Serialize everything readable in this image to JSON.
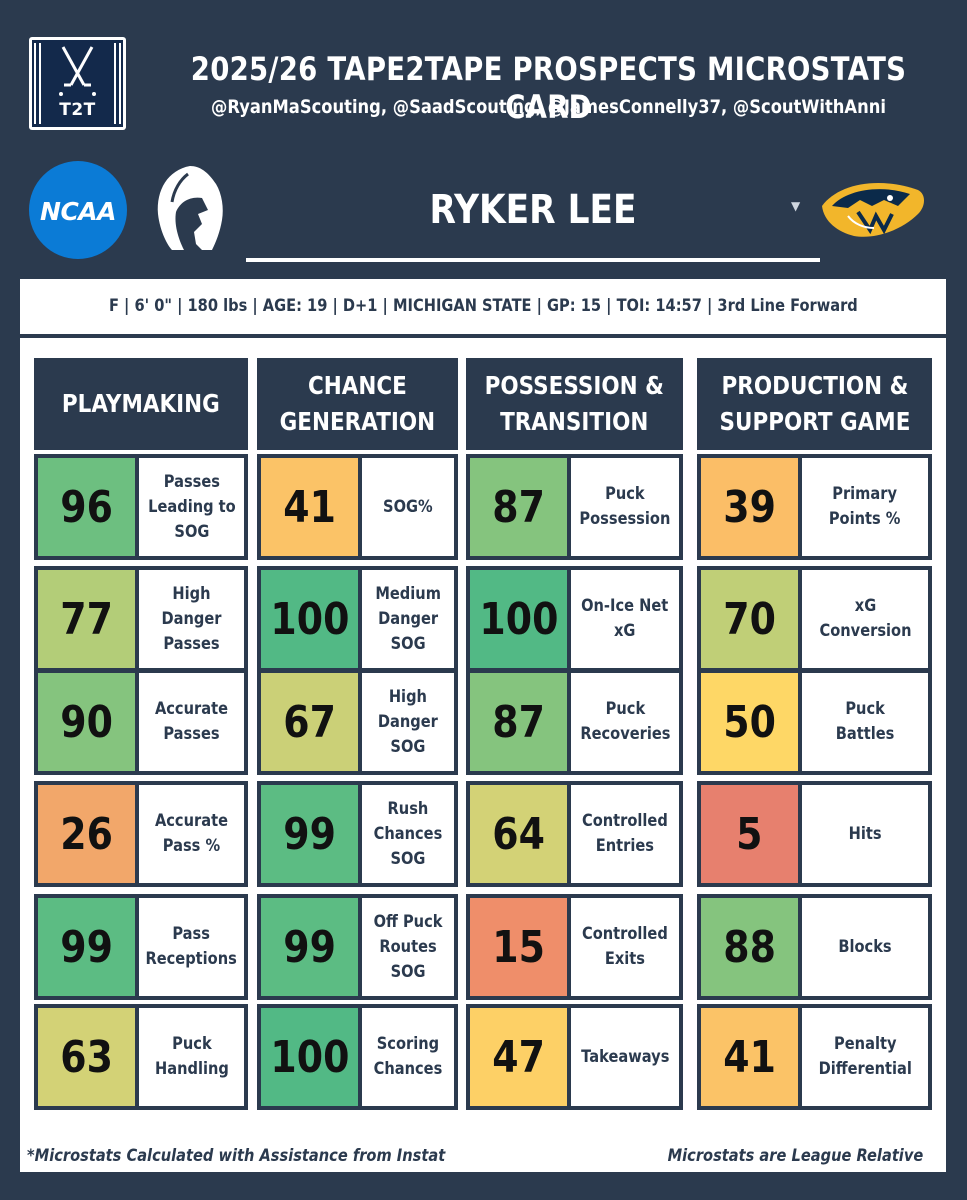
{
  "header": {
    "title": "2025/26 TAPE2TAPE PROSPECTS MICROSTATS CARD",
    "credits": "@RyanMaScouting, @SaadScouting, @JamesConnelly37, @ScoutWithAnni",
    "logo_text": "T2T"
  },
  "badges": {
    "league_logo_text": "NCAA"
  },
  "player": {
    "name": "RYKER LEE",
    "info_line": "F   |   6' 0\"   |   180 lbs   |   AGE: 19   |   D+1   |   MICHIGAN STATE   |   GP: 15   |   TOI: 14:57   |   3rd Line Forward"
  },
  "colors": {
    "background": "#2b3a4e",
    "scale": {
      "dark_green": "#52b985",
      "green": "#74c07e",
      "light_green": "#b7cf77",
      "yellow_green": "#d2d276",
      "yellow": "#fed766",
      "light_orange": "#fbc567",
      "orange": "#f2a76a",
      "dark_orange": "#ef8e6a",
      "red": "#e7806e"
    }
  },
  "categories": [
    {
      "title": "PLAYMAKING",
      "stats": [
        {
          "value": "96",
          "label": "Passes\nLeading to\nSOG",
          "color": "#6dbf80"
        },
        {
          "value": "77",
          "label": "High Danger\nPasses",
          "color": "#b3cd78"
        },
        {
          "value": "90",
          "label": "Accurate\nPasses",
          "color": "#85c47e"
        },
        {
          "value": "26",
          "label": "Accurate\nPass %",
          "color": "#f2a76a"
        },
        {
          "value": "99",
          "label": "Pass\nReceptions",
          "color": "#5cbc83"
        },
        {
          "value": "63",
          "label": "Puck\nHandling",
          "color": "#d3d276"
        }
      ]
    },
    {
      "title": "CHANCE\nGENERATION",
      "stats": [
        {
          "value": "41",
          "label": "SOG%",
          "color": "#fbc367"
        },
        {
          "value": "100",
          "label": "Medium\nDanger\nSOG",
          "color": "#52b985"
        },
        {
          "value": "67",
          "label": "High\nDanger\nSOG",
          "color": "#cbd077"
        },
        {
          "value": "99",
          "label": "Rush\nChances\nSOG",
          "color": "#5cbc83"
        },
        {
          "value": "99",
          "label": "Off Puck\nRoutes\nSOG",
          "color": "#5cbc83"
        },
        {
          "value": "100",
          "label": "Scoring\nChances",
          "color": "#52b985"
        }
      ]
    },
    {
      "title": "POSSESSION &\nTRANSITION",
      "stats": [
        {
          "value": "87",
          "label": "Puck\nPossession",
          "color": "#85c47e"
        },
        {
          "value": "100",
          "label": "On-Ice Net\nxG",
          "color": "#52b985"
        },
        {
          "value": "87",
          "label": "Puck\nRecoveries",
          "color": "#85c47e"
        },
        {
          "value": "64",
          "label": "Controlled\nEntries",
          "color": "#d3d276"
        },
        {
          "value": "15",
          "label": "Controlled\nExits",
          "color": "#ef8e6a"
        },
        {
          "value": "47",
          "label": "Takeaways",
          "color": "#fdd066"
        }
      ]
    },
    {
      "title": "PRODUCTION &\nSUPPORT GAME",
      "stats": [
        {
          "value": "39",
          "label": "Primary\nPoints %",
          "color": "#fbbe67"
        },
        {
          "value": "70",
          "label": "xG\nConversion",
          "color": "#c0cf77"
        },
        {
          "value": "50",
          "label": "Puck\nBattles",
          "color": "#fed766"
        },
        {
          "value": "5",
          "label": "Hits",
          "color": "#e7806e"
        },
        {
          "value": "88",
          "label": "Blocks",
          "color": "#85c47e"
        },
        {
          "value": "41",
          "label": "Penalty\nDifferential",
          "color": "#fbc367"
        }
      ]
    }
  ],
  "footer": {
    "left": "*Microstats Calculated with Assistance from Instat",
    "right": "Microstats are League Relative"
  }
}
